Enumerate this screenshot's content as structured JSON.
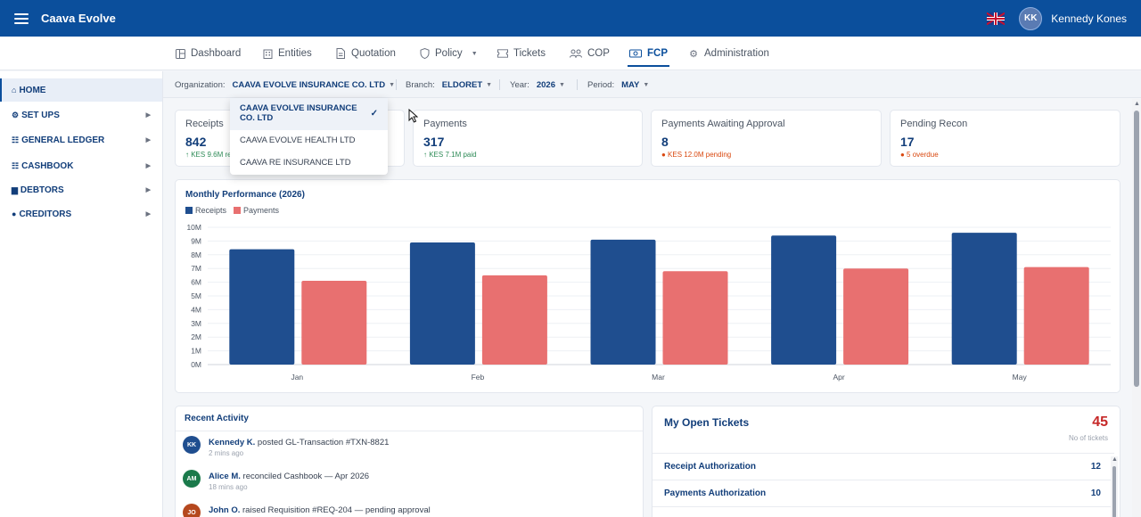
{
  "app": {
    "title": "Caava Evolve"
  },
  "user": {
    "initials": "KK",
    "name": "Kennedy Kones",
    "language_flag": "uk-flag-icon"
  },
  "nav": {
    "tabs": [
      {
        "label": "Dashboard",
        "icon": "dashboard-icon"
      },
      {
        "label": "Entities",
        "icon": "building-icon"
      },
      {
        "label": "Quotation",
        "icon": "document-icon"
      },
      {
        "label": "Policy",
        "icon": "shield-icon"
      },
      {
        "label": "Tickets",
        "icon": "ticket-icon"
      },
      {
        "label": "COP",
        "icon": "users-icon"
      },
      {
        "label": "FCP",
        "icon": "money-icon",
        "active": true
      },
      {
        "label": "Administration",
        "icon": "gear-icon"
      }
    ]
  },
  "sidebar": {
    "items": [
      {
        "label": "HOME",
        "icon": "⌂"
      },
      {
        "label": "SET UPS",
        "icon": "⚙"
      },
      {
        "label": "GENERAL LEDGER",
        "icon": "☷"
      },
      {
        "label": "CASHBOOK",
        "icon": "☷"
      },
      {
        "label": "DEBTORS",
        "icon": "▆"
      },
      {
        "label": "CREDITORS",
        "icon": "●"
      }
    ]
  },
  "filters": {
    "organization": {
      "label": "Organization:",
      "value": "CAAVA EVOLVE INSURANCE CO. LTD"
    },
    "branch": {
      "label": "Branch:",
      "value": "ELDORET"
    },
    "year": {
      "label": "Year:",
      "value": "2026"
    },
    "period": {
      "label": "Period:",
      "value": "MAY"
    }
  },
  "org_dropdown": {
    "options": [
      {
        "label": "CAAVA EVOLVE INSURANCE CO. LTD",
        "selected": true
      },
      {
        "label": "CAAVA EVOLVE HEALTH LTD"
      },
      {
        "label": "CAAVA RE INSURANCE LTD"
      }
    ],
    "check": "✓"
  },
  "stats": [
    {
      "label": "Receipts",
      "value": "842",
      "sub": "↑ KES 9.6M re"
    },
    {
      "label": "Payments",
      "value": "317",
      "sub": "↑ KES 7.1M paid"
    },
    {
      "label": "Payments Awaiting Approval",
      "value": "8",
      "sub": "● KES 12.0M pending"
    },
    {
      "label": "Pending Recon",
      "value": "17",
      "sub": "● 5 overdue"
    }
  ],
  "chart": {
    "title": "Monthly Performance (2026)",
    "legend": [
      "Receipts",
      "Payments"
    ]
  },
  "chart_data": {
    "type": "bar",
    "title": "Monthly Performance (2026)",
    "categories": [
      "Jan",
      "Feb",
      "Mar",
      "Apr",
      "May"
    ],
    "series": [
      {
        "name": "Receipts",
        "color": "#1f4e8f",
        "values": [
          8.4,
          8.9,
          9.1,
          9.4,
          9.6
        ]
      },
      {
        "name": "Payments",
        "color": "#e87070",
        "values": [
          6.1,
          6.5,
          6.8,
          7.0,
          7.1
        ]
      }
    ],
    "ylim": [
      0,
      10
    ],
    "yticks": [
      "0M",
      "1M",
      "2M",
      "3M",
      "4M",
      "5M",
      "6M",
      "7M",
      "8M",
      "9M",
      "10M"
    ],
    "grid": true,
    "legend_position": "top-left"
  },
  "activity": {
    "title": "Recent Activity",
    "items": [
      {
        "initials": "KK",
        "color": "#1f4e8f",
        "user": "Kennedy K.",
        "text": " posted GL-Transaction #TXN-8821",
        "time": "2 mins ago"
      },
      {
        "initials": "AM",
        "color": "#1b7a4b",
        "user": "Alice M.",
        "text": " reconciled Cashbook — Apr 2026",
        "time": "18 mins ago"
      },
      {
        "initials": "JO",
        "color": "#b5481e",
        "user": "John O.",
        "text": " raised Requisition #REQ-204 — pending approval",
        "time": ""
      }
    ]
  },
  "tickets": {
    "title": "My Open Tickets",
    "count": "45",
    "count_label": "No of tickets",
    "rows": [
      {
        "label": "Receipt Authorization",
        "value": "12"
      },
      {
        "label": "Payments Authorization",
        "value": "10"
      }
    ]
  }
}
